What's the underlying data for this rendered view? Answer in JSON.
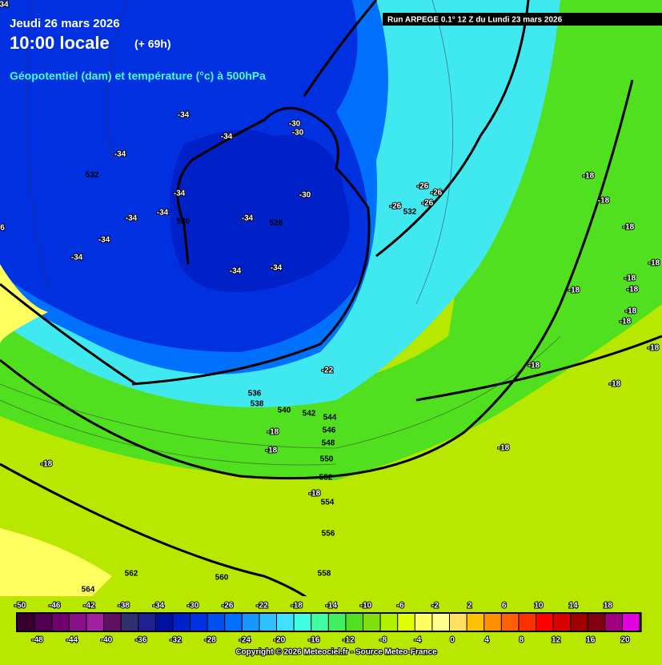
{
  "header": {
    "date": "Jeudi 26 mars 2026",
    "time": "10:00 locale",
    "lead": "(+ 69h)",
    "subtitle": "Géopotentiel (dam) et température (°c) à 500hPa"
  },
  "run": "Run ARPEGE 0.1° 12 Z du Lundi 23 mars 2026",
  "geopotential_labels": [
    532,
    530,
    528,
    532,
    536,
    538,
    540,
    542,
    544,
    546,
    548,
    550,
    552,
    554,
    556,
    558,
    560,
    562,
    564
  ],
  "temperature_labels": [
    34,
    6,
    -34,
    -34,
    -34,
    -34,
    -34,
    -34,
    -34,
    -34,
    -34,
    -34,
    -34,
    -30,
    -30,
    -30,
    -26,
    -26,
    -26,
    -26,
    -22,
    -18,
    -18,
    -18,
    -18,
    -18,
    -18,
    -18,
    -18,
    -18,
    -18,
    -18,
    -18,
    -18,
    -18,
    -18,
    -18,
    -18
  ],
  "scale": {
    "colors": [
      "#380030",
      "#500050",
      "#700070",
      "#8a108a",
      "#a020a0",
      "#601060",
      "#303070",
      "#202090",
      "#0010a0",
      "#0020c8",
      "#0030e0",
      "#0050f0",
      "#0070ff",
      "#1898ff",
      "#30c0ff",
      "#40e0ff",
      "#40ffe0",
      "#40ffa0",
      "#40f060",
      "#50e020",
      "#80e010",
      "#b0f000",
      "#e0ff00",
      "#ffff60",
      "#ffff90",
      "#ffe060",
      "#ffc000",
      "#ff9000",
      "#ff6000",
      "#ff3000",
      "#ff0000",
      "#d80000",
      "#a00000",
      "#800010",
      "#a00080",
      "#e000e0"
    ],
    "top_labels": [
      -50,
      -46,
      -42,
      -38,
      -34,
      -30,
      -26,
      -22,
      -18,
      -14,
      -10,
      -6,
      -2,
      2,
      6,
      10,
      14,
      18
    ],
    "bottom_labels": [
      -48,
      -44,
      -40,
      -36,
      -32,
      -28,
      -24,
      -20,
      -16,
      -12,
      -8,
      -4,
      0,
      4,
      8,
      12,
      16,
      20
    ]
  },
  "copyright": "Copyright © 2026 Meteociel.fr - Source Meteo-France"
}
